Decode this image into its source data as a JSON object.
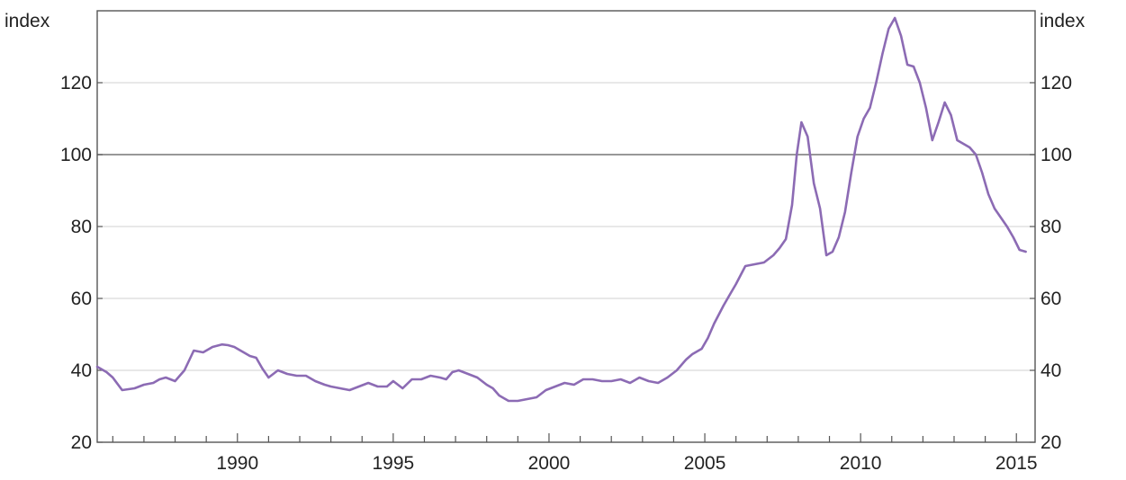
{
  "chart_data": {
    "type": "line",
    "title": "",
    "xlabel": "",
    "y_unit_left": "index",
    "y_unit_right": "index",
    "xlim": [
      1985.5,
      2015.6
    ],
    "ylim": [
      20,
      140
    ],
    "x_ticks": [
      1990,
      1995,
      2000,
      2005,
      2010,
      2015
    ],
    "x_tick_labels": [
      "1990",
      "1995",
      "2000",
      "2005",
      "2010",
      "2015"
    ],
    "y_ticks": [
      20,
      40,
      60,
      80,
      100,
      120
    ],
    "y_tick_labels": [
      "20",
      "40",
      "60",
      "80",
      "100",
      "120"
    ],
    "reference_line": 100,
    "grid": true,
    "legend": "none",
    "colors": {
      "line": "#8c6bb4",
      "axis": "#555555",
      "grid": "#d0d0d0",
      "reference": "#777777"
    },
    "series": [
      {
        "x": [
          1985.5,
          1985.8,
          1986.0,
          1986.3,
          1986.7,
          1987.0,
          1987.3,
          1987.5,
          1987.7,
          1988.0,
          1988.3,
          1988.6,
          1988.9,
          1989.2,
          1989.5,
          1989.7,
          1989.9,
          1990.2,
          1990.4,
          1990.6,
          1990.8,
          1991.0,
          1991.3,
          1991.6,
          1991.9,
          1992.2,
          1992.5,
          1992.8,
          1993.0,
          1993.3,
          1993.6,
          1993.9,
          1994.2,
          1994.5,
          1994.8,
          1995.0,
          1995.3,
          1995.6,
          1995.9,
          1996.2,
          1996.5,
          1996.7,
          1996.9,
          1997.1,
          1997.4,
          1997.7,
          1998.0,
          1998.2,
          1998.4,
          1998.7,
          1999.0,
          1999.3,
          1999.6,
          1999.9,
          2000.2,
          2000.5,
          2000.8,
          2001.1,
          2001.4,
          2001.7,
          2002.0,
          2002.3,
          2002.6,
          2002.9,
          2003.2,
          2003.5,
          2003.8,
          2004.1,
          2004.4,
          2004.6,
          2004.9,
          2005.1,
          2005.3,
          2005.6,
          2005.8,
          2006.0,
          2006.3,
          2006.6,
          2006.9,
          2007.2,
          2007.4,
          2007.6,
          2007.8,
          2007.95,
          2008.1,
          2008.3,
          2008.5,
          2008.7,
          2008.9,
          2009.1,
          2009.3,
          2009.5,
          2009.7,
          2009.9,
          2010.1,
          2010.3,
          2010.5,
          2010.7,
          2010.9,
          2011.1,
          2011.3,
          2011.5,
          2011.7,
          2011.9,
          2012.1,
          2012.3,
          2012.5,
          2012.7,
          2012.9,
          2013.1,
          2013.3,
          2013.5,
          2013.7,
          2013.9,
          2014.1,
          2014.3,
          2014.5,
          2014.7,
          2014.9,
          2015.1,
          2015.3
        ],
        "values": [
          41,
          39.5,
          38,
          34.5,
          35,
          36,
          36.5,
          37.5,
          38,
          37,
          40,
          45.5,
          45,
          46.5,
          47.2,
          47,
          46.5,
          45,
          44,
          43.5,
          40.5,
          38,
          40,
          39,
          38.5,
          38.5,
          37,
          36,
          35.5,
          35,
          34.5,
          35.5,
          36.5,
          35.5,
          35.5,
          37,
          35,
          37.5,
          37.5,
          38.5,
          38,
          37.5,
          39.5,
          40,
          39,
          38,
          36,
          35,
          33,
          31.5,
          31.5,
          32,
          32.5,
          34.5,
          35.5,
          36.5,
          36,
          37.5,
          37.5,
          37,
          37,
          37.5,
          36.5,
          38,
          37,
          36.5,
          38,
          40,
          43,
          44.5,
          46,
          49,
          53,
          58,
          61,
          64,
          69,
          69.5,
          70,
          72,
          74,
          76.5,
          86,
          100,
          109,
          105,
          92,
          85,
          72,
          73,
          77,
          84,
          95,
          105,
          110,
          113,
          120,
          128,
          135,
          138,
          133,
          125,
          124.5,
          120,
          113,
          104,
          109,
          114.5,
          111,
          104,
          103,
          102,
          100,
          95,
          89,
          85,
          82.5,
          80,
          77,
          73.5,
          73
        ]
      }
    ]
  }
}
